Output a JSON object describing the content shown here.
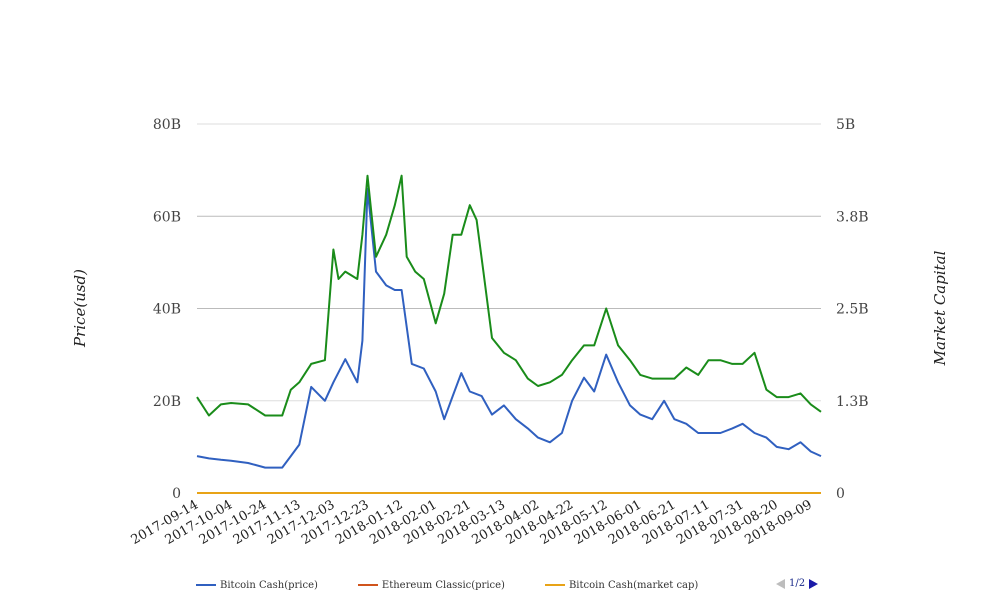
{
  "chart_data": {
    "type": "line",
    "ylabel": "Price(usd)",
    "y2label": "Market Capital",
    "ylim": [
      0,
      80000000000
    ],
    "y2lim": [
      0,
      5000000000
    ],
    "yticks": [
      "0",
      "20B",
      "40B",
      "60B",
      "80B"
    ],
    "y2ticks": [
      "0",
      "1.3B",
      "2.5B",
      "3.8B",
      "5B"
    ],
    "xticks": [
      "2017-09-14",
      "2017-10-04",
      "2017-10-24",
      "2017-11-13",
      "2017-12-03",
      "2017-12-23",
      "2018-01-12",
      "2018-02-01",
      "2018-02-21",
      "2018-03-13",
      "2018-04-02",
      "2018-04-22",
      "2018-05-12",
      "2018-06-01",
      "2018-06-21",
      "2018-07-11",
      "2018-07-31",
      "2018-08-20",
      "2018-09-09"
    ],
    "grid": true,
    "legend_position": "bottom-left",
    "series": [
      {
        "name": "Bitcoin Cash(price)",
        "color": "#3060c0",
        "x": [
          "2017-09-14",
          "2017-09-21",
          "2017-09-28",
          "2017-10-04",
          "2017-10-14",
          "2017-10-24",
          "2017-11-03",
          "2017-11-08",
          "2017-11-13",
          "2017-11-20",
          "2017-11-28",
          "2017-12-03",
          "2017-12-10",
          "2017-12-17",
          "2017-12-20",
          "2017-12-23",
          "2017-12-28",
          "2018-01-03",
          "2018-01-08",
          "2018-01-12",
          "2018-01-18",
          "2018-01-25",
          "2018-02-01",
          "2018-02-06",
          "2018-02-11",
          "2018-02-16",
          "2018-02-21",
          "2018-02-28",
          "2018-03-06",
          "2018-03-13",
          "2018-03-20",
          "2018-03-27",
          "2018-04-02",
          "2018-04-09",
          "2018-04-16",
          "2018-04-22",
          "2018-04-29",
          "2018-05-05",
          "2018-05-12",
          "2018-05-19",
          "2018-05-26",
          "2018-06-01",
          "2018-06-08",
          "2018-06-15",
          "2018-06-21",
          "2018-06-28",
          "2018-07-05",
          "2018-07-11",
          "2018-07-18",
          "2018-07-25",
          "2018-07-31",
          "2018-08-07",
          "2018-08-14",
          "2018-08-20",
          "2018-08-27",
          "2018-09-03",
          "2018-09-09",
          "2018-09-15"
        ],
        "values": [
          8,
          7.5,
          7.2,
          7,
          6.5,
          5.5,
          5.5,
          8,
          10.5,
          23,
          20,
          24,
          29,
          24,
          33,
          66,
          48,
          45,
          44,
          44,
          28,
          27,
          22,
          16,
          21,
          26,
          22,
          21,
          17,
          19,
          16,
          14,
          12,
          11,
          13,
          20,
          25,
          22,
          30,
          24,
          19,
          17,
          16,
          20,
          16,
          15,
          13,
          13,
          13,
          14,
          15,
          13,
          12,
          10,
          9.5,
          11,
          9,
          8
        ]
      },
      {
        "name": "Ethereum Classic(price)",
        "color": "#d0541c",
        "x": [
          "2017-09-14",
          "2018-09-15"
        ],
        "values": [
          0,
          0
        ]
      },
      {
        "name": "Bitcoin Cash(market cap)",
        "color": "#e8a317",
        "x": [
          "2017-09-14",
          "2018-09-15"
        ],
        "values": [
          0,
          0
        ]
      },
      {
        "name": "",
        "color": "#1a8c1a",
        "x": [
          "2017-09-14",
          "2017-09-21",
          "2017-09-28",
          "2017-10-04",
          "2017-10-14",
          "2017-10-24",
          "2017-11-03",
          "2017-11-08",
          "2017-11-13",
          "2017-11-20",
          "2017-11-28",
          "2017-12-03",
          "2017-12-06",
          "2017-12-10",
          "2017-12-17",
          "2017-12-20",
          "2017-12-23",
          "2017-12-28",
          "2018-01-03",
          "2018-01-08",
          "2018-01-12",
          "2018-01-15",
          "2018-01-20",
          "2018-01-25",
          "2018-02-01",
          "2018-02-06",
          "2018-02-11",
          "2018-02-16",
          "2018-02-21",
          "2018-02-25",
          "2018-03-01",
          "2018-03-06",
          "2018-03-13",
          "2018-03-20",
          "2018-03-27",
          "2018-04-02",
          "2018-04-09",
          "2018-04-16",
          "2018-04-22",
          "2018-04-29",
          "2018-05-05",
          "2018-05-12",
          "2018-05-19",
          "2018-05-26",
          "2018-06-01",
          "2018-06-08",
          "2018-06-15",
          "2018-06-21",
          "2018-06-28",
          "2018-07-05",
          "2018-07-11",
          "2018-07-18",
          "2018-07-25",
          "2018-07-31",
          "2018-08-07",
          "2018-08-14",
          "2018-08-20",
          "2018-08-27",
          "2018-09-03",
          "2018-09-09",
          "2018-09-15"
        ],
        "values": [
          1.3,
          1.05,
          1.2,
          1.22,
          1.2,
          1.05,
          1.05,
          1.4,
          1.5,
          1.75,
          1.8,
          3.3,
          2.9,
          3.0,
          2.9,
          3.5,
          4.3,
          3.2,
          3.5,
          3.9,
          4.3,
          3.2,
          3.0,
          2.9,
          2.3,
          2.7,
          3.5,
          3.5,
          3.9,
          3.7,
          3.0,
          2.1,
          1.9,
          1.8,
          1.55,
          1.45,
          1.5,
          1.6,
          1.8,
          2.0,
          2.0,
          2.5,
          2.0,
          1.8,
          1.6,
          1.55,
          1.55,
          1.55,
          1.7,
          1.6,
          1.8,
          1.8,
          1.75,
          1.75,
          1.9,
          1.4,
          1.3,
          1.3,
          1.35,
          1.2,
          1.1
        ]
      }
    ]
  },
  "legend": [
    {
      "label": "Bitcoin Cash(price)",
      "color": "#3060c0"
    },
    {
      "label": "Ethereum Classic(price)",
      "color": "#d0541c"
    },
    {
      "label": "Bitcoin Cash(market cap)",
      "color": "#e8a317"
    }
  ],
  "pager": {
    "text": "1/2"
  }
}
